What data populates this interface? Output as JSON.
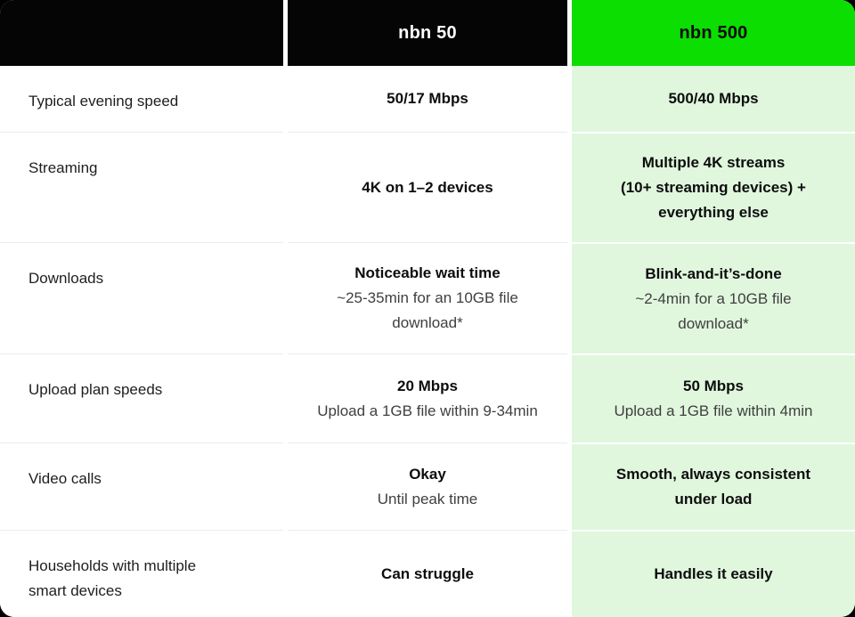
{
  "colors": {
    "page_bg": "#000000",
    "card_bg": "#ffffff",
    "header_bg": "#050505",
    "header_text": "#ffffff",
    "accent_green": "#0bde00",
    "light_green": "#e0f7de",
    "label_text": "#1e1e1e",
    "bold_text": "#0d0d0d",
    "muted_text": "#3f3f3f",
    "divider": "#ececec"
  },
  "table": {
    "columns": [
      {
        "key": "feature",
        "header": ""
      },
      {
        "key": "nbn50",
        "header": "nbn 50"
      },
      {
        "key": "nbn500",
        "header": "nbn 500"
      }
    ],
    "rows": [
      {
        "feature": "Typical evening speed",
        "nbn50": {
          "bold": [
            "50/17 Mbps"
          ],
          "regular": []
        },
        "nbn500": {
          "bold": [
            "500/40 Mbps"
          ],
          "regular": []
        }
      },
      {
        "feature": "Streaming",
        "nbn50": {
          "bold": [
            "4K on 1–2 devices"
          ],
          "regular": []
        },
        "nbn500": {
          "bold": [
            "Multiple 4K streams",
            "(10+ streaming devices) +",
            "everything else"
          ],
          "regular": []
        }
      },
      {
        "feature": "Downloads",
        "nbn50": {
          "bold": [
            "Noticeable wait time"
          ],
          "regular": [
            "~25-35min for an 10GB file",
            "download*"
          ]
        },
        "nbn500": {
          "bold": [
            "Blink-and-it’s-done"
          ],
          "regular": [
            "~2-4min for a 10GB file",
            "download*"
          ]
        }
      },
      {
        "feature": "Upload plan speeds",
        "nbn50": {
          "bold": [
            "20 Mbps"
          ],
          "regular": [
            "Upload a 1GB file within 9-34min"
          ]
        },
        "nbn500": {
          "bold": [
            "50 Mbps"
          ],
          "regular": [
            "Upload a 1GB file within 4min"
          ]
        }
      },
      {
        "feature": "Video calls",
        "nbn50": {
          "bold": [
            "Okay"
          ],
          "regular": [
            "Until peak time"
          ]
        },
        "nbn500": {
          "bold": [
            "Smooth, always consistent",
            "under load"
          ],
          "regular": []
        }
      },
      {
        "feature": "Households with multiple smart devices",
        "nbn50": {
          "bold": [
            "Can struggle"
          ],
          "regular": []
        },
        "nbn500": {
          "bold": [
            "Handles it easily"
          ],
          "regular": []
        }
      }
    ]
  }
}
